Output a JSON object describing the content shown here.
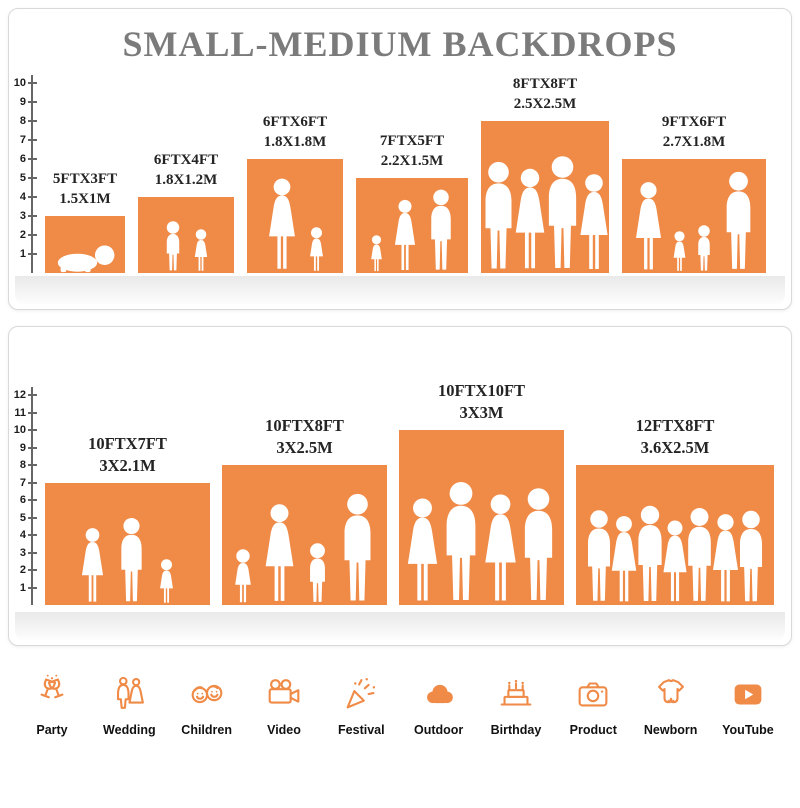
{
  "title": "SMALL-MEDIUM BACKDROPS",
  "accent_color": "#EF8A47",
  "top_panel": {
    "ruler": [
      "1",
      "2",
      "3",
      "4",
      "5",
      "6",
      "7",
      "8",
      "9",
      "10"
    ],
    "items": [
      {
        "size_ft": "5FTX3FT",
        "size_m": "1.5X1M",
        "width_ft": 5,
        "height_ft": 3,
        "people": "crawling-baby"
      },
      {
        "size_ft": "6FTX4FT",
        "size_m": "1.8X1.2M",
        "width_ft": 6,
        "height_ft": 4,
        "people": "two-children"
      },
      {
        "size_ft": "6FTX6FT",
        "size_m": "1.8X1.8M",
        "width_ft": 6,
        "height_ft": 6,
        "people": "mother-and-child"
      },
      {
        "size_ft": "7FTX5FT",
        "size_m": "2.2X1.5M",
        "width_ft": 7,
        "height_ft": 5,
        "people": "family-of-three"
      },
      {
        "size_ft": "8FTX8FT",
        "size_m": "2.5X2.5M",
        "width_ft": 8,
        "height_ft": 8,
        "people": "group-of-adults"
      },
      {
        "size_ft": "9FTX6FT",
        "size_m": "2.7X1.8M",
        "width_ft": 9,
        "height_ft": 6,
        "people": "family-of-four"
      }
    ]
  },
  "bottom_panel": {
    "ruler": [
      "1",
      "2",
      "3",
      "4",
      "5",
      "6",
      "7",
      "8",
      "9",
      "10",
      "11",
      "12"
    ],
    "items": [
      {
        "size_ft": "10FTX7FT",
        "size_m": "3X2.1M",
        "width_ft": 10,
        "height_ft": 7,
        "people": "family-of-three"
      },
      {
        "size_ft": "10FTX8FT",
        "size_m": "3X2.5M",
        "width_ft": 10,
        "height_ft": 8,
        "people": "family-of-four"
      },
      {
        "size_ft": "10FTX10FT",
        "size_m": "3X3M",
        "width_ft": 10,
        "height_ft": 10,
        "people": "group-of-adults"
      },
      {
        "size_ft": "12FTX8FT",
        "size_m": "3.6X2.5M",
        "width_ft": 12,
        "height_ft": 8,
        "people": "large-group"
      }
    ]
  },
  "categories": [
    {
      "label": "Party",
      "icon": "party-toast-icon"
    },
    {
      "label": "Wedding",
      "icon": "wedding-couple-icon"
    },
    {
      "label": "Children",
      "icon": "children-faces-icon"
    },
    {
      "label": "Video",
      "icon": "video-camera-icon"
    },
    {
      "label": "Festival",
      "icon": "festival-popper-icon"
    },
    {
      "label": "Outdoor",
      "icon": "outdoor-cloud-icon"
    },
    {
      "label": "Birthday",
      "icon": "birthday-cake-icon"
    },
    {
      "label": "Product",
      "icon": "product-camera-icon"
    },
    {
      "label": "Newborn",
      "icon": "newborn-onesie-icon"
    },
    {
      "label": "YouTube",
      "icon": "youtube-play-icon"
    }
  ]
}
